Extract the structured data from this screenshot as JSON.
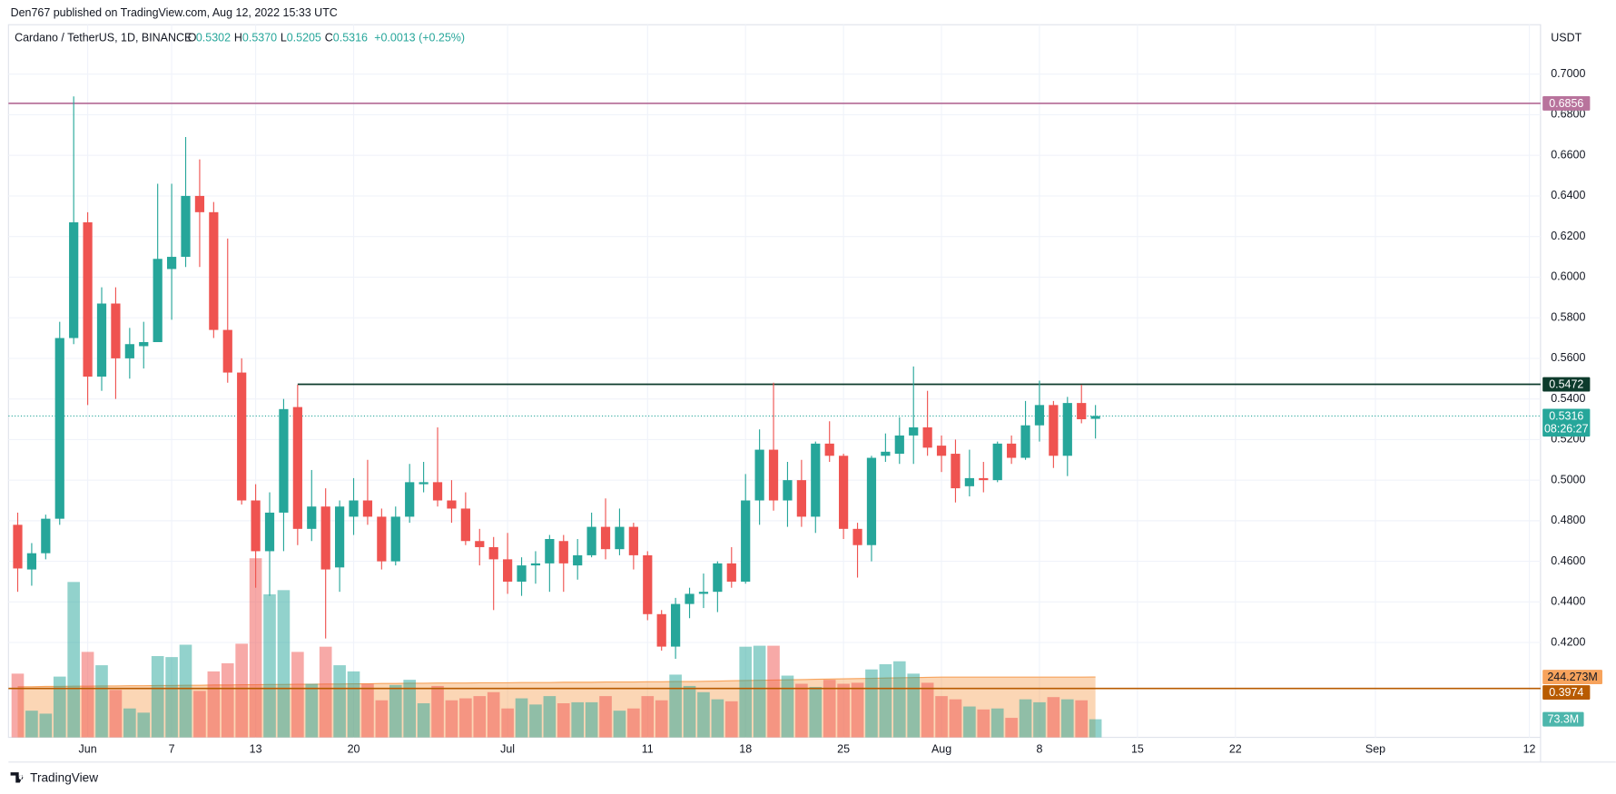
{
  "header": {
    "published": "Den767 published on TradingView.com, Aug 12, 2022 15:33 UTC",
    "symbol": "Cardano / TetherUS, 1D, BINANCE",
    "ohlc": [
      {
        "key": "O",
        "value": "0.5302"
      },
      {
        "key": "H",
        "value": "0.5370"
      },
      {
        "key": "L",
        "value": "0.5205"
      },
      {
        "key": "C",
        "value": "0.5316"
      }
    ],
    "change": "+0.0013 (+0.25%)"
  },
  "footer": {
    "brand": "TradingView"
  },
  "chart_data": {
    "type": "candlestick",
    "currency": "USDT",
    "up_color": "#26a69a",
    "down_color": "#ef5350",
    "grid": true,
    "xlim": [
      -0.66,
      108.8
    ],
    "xticks": [
      {
        "value": 5,
        "label": "Jun"
      },
      {
        "value": 11,
        "label": "7"
      },
      {
        "value": 17,
        "label": "13"
      },
      {
        "value": 24,
        "label": "20"
      },
      {
        "value": 35,
        "label": "Jul"
      },
      {
        "value": 45,
        "label": "11"
      },
      {
        "value": 52,
        "label": "18"
      },
      {
        "value": 59,
        "label": "25"
      },
      {
        "value": 66,
        "label": "Aug"
      },
      {
        "value": 73,
        "label": "8"
      },
      {
        "value": 80,
        "label": "15"
      },
      {
        "value": 87,
        "label": "22"
      },
      {
        "value": 97,
        "label": "Sep"
      },
      {
        "value": 108,
        "label": "12"
      }
    ],
    "ylim": [
      0.3733,
      0.7213
    ],
    "yticks": [
      {
        "value": 0.42,
        "label": "0.4200"
      },
      {
        "value": 0.44,
        "label": "0.4400"
      },
      {
        "value": 0.46,
        "label": "0.4600"
      },
      {
        "value": 0.48,
        "label": "0.4800"
      },
      {
        "value": 0.5,
        "label": "0.5000"
      },
      {
        "value": 0.52,
        "label": "0.5200"
      },
      {
        "value": 0.54,
        "label": "0.5400"
      },
      {
        "value": 0.56,
        "label": "0.5600"
      },
      {
        "value": 0.58,
        "label": "0.5800"
      },
      {
        "value": 0.6,
        "label": "0.6000"
      },
      {
        "value": 0.62,
        "label": "0.6200"
      },
      {
        "value": 0.64,
        "label": "0.6400"
      },
      {
        "value": 0.66,
        "label": "0.6600"
      },
      {
        "value": 0.68,
        "label": "0.6800"
      },
      {
        "value": 0.7,
        "label": "0.7000"
      }
    ],
    "candles": [
      {
        "o": 0.478,
        "h": 0.484,
        "l": 0.445,
        "c": 0.4565
      },
      {
        "o": 0.456,
        "h": 0.469,
        "l": 0.448,
        "c": 0.464
      },
      {
        "o": 0.464,
        "h": 0.483,
        "l": 0.461,
        "c": 0.481
      },
      {
        "o": 0.481,
        "h": 0.578,
        "l": 0.478,
        "c": 0.57
      },
      {
        "o": 0.57,
        "h": 0.689,
        "l": 0.567,
        "c": 0.627
      },
      {
        "o": 0.627,
        "h": 0.632,
        "l": 0.537,
        "c": 0.551
      },
      {
        "o": 0.551,
        "h": 0.595,
        "l": 0.544,
        "c": 0.587
      },
      {
        "o": 0.587,
        "h": 0.595,
        "l": 0.54,
        "c": 0.56
      },
      {
        "o": 0.56,
        "h": 0.575,
        "l": 0.55,
        "c": 0.567
      },
      {
        "o": 0.566,
        "h": 0.578,
        "l": 0.555,
        "c": 0.568
      },
      {
        "o": 0.568,
        "h": 0.646,
        "l": 0.568,
        "c": 0.609
      },
      {
        "o": 0.604,
        "h": 0.646,
        "l": 0.579,
        "c": 0.61
      },
      {
        "o": 0.61,
        "h": 0.669,
        "l": 0.605,
        "c": 0.64
      },
      {
        "o": 0.64,
        "h": 0.658,
        "l": 0.605,
        "c": 0.632
      },
      {
        "o": 0.632,
        "h": 0.637,
        "l": 0.57,
        "c": 0.574
      },
      {
        "o": 0.574,
        "h": 0.619,
        "l": 0.548,
        "c": 0.553
      },
      {
        "o": 0.553,
        "h": 0.56,
        "l": 0.488,
        "c": 0.49
      },
      {
        "o": 0.49,
        "h": 0.498,
        "l": 0.447,
        "c": 0.465
      },
      {
        "o": 0.465,
        "h": 0.494,
        "l": 0.443,
        "c": 0.484
      },
      {
        "o": 0.484,
        "h": 0.54,
        "l": 0.465,
        "c": 0.535
      },
      {
        "o": 0.536,
        "h": 0.547,
        "l": 0.468,
        "c": 0.476
      },
      {
        "o": 0.476,
        "h": 0.505,
        "l": 0.47,
        "c": 0.487
      },
      {
        "o": 0.487,
        "h": 0.496,
        "l": 0.422,
        "c": 0.456
      },
      {
        "o": 0.457,
        "h": 0.49,
        "l": 0.445,
        "c": 0.487
      },
      {
        "o": 0.482,
        "h": 0.501,
        "l": 0.473,
        "c": 0.49
      },
      {
        "o": 0.49,
        "h": 0.51,
        "l": 0.478,
        "c": 0.482
      },
      {
        "o": 0.482,
        "h": 0.486,
        "l": 0.456,
        "c": 0.46
      },
      {
        "o": 0.46,
        "h": 0.487,
        "l": 0.458,
        "c": 0.482
      },
      {
        "o": 0.482,
        "h": 0.508,
        "l": 0.479,
        "c": 0.499
      },
      {
        "o": 0.498,
        "h": 0.509,
        "l": 0.494,
        "c": 0.499
      },
      {
        "o": 0.499,
        "h": 0.526,
        "l": 0.487,
        "c": 0.49
      },
      {
        "o": 0.49,
        "h": 0.5,
        "l": 0.479,
        "c": 0.486
      },
      {
        "o": 0.486,
        "h": 0.494,
        "l": 0.468,
        "c": 0.47
      },
      {
        "o": 0.47,
        "h": 0.476,
        "l": 0.458,
        "c": 0.467
      },
      {
        "o": 0.467,
        "h": 0.472,
        "l": 0.436,
        "c": 0.461
      },
      {
        "o": 0.461,
        "h": 0.474,
        "l": 0.444,
        "c": 0.45
      },
      {
        "o": 0.45,
        "h": 0.462,
        "l": 0.443,
        "c": 0.458
      },
      {
        "o": 0.458,
        "h": 0.465,
        "l": 0.449,
        "c": 0.459
      },
      {
        "o": 0.459,
        "h": 0.473,
        "l": 0.445,
        "c": 0.471
      },
      {
        "o": 0.47,
        "h": 0.473,
        "l": 0.445,
        "c": 0.459
      },
      {
        "o": 0.458,
        "h": 0.471,
        "l": 0.451,
        "c": 0.463
      },
      {
        "o": 0.463,
        "h": 0.484,
        "l": 0.462,
        "c": 0.477
      },
      {
        "o": 0.477,
        "h": 0.491,
        "l": 0.461,
        "c": 0.466
      },
      {
        "o": 0.466,
        "h": 0.486,
        "l": 0.463,
        "c": 0.477
      },
      {
        "o": 0.477,
        "h": 0.479,
        "l": 0.456,
        "c": 0.463
      },
      {
        "o": 0.463,
        "h": 0.465,
        "l": 0.431,
        "c": 0.434
      },
      {
        "o": 0.434,
        "h": 0.436,
        "l": 0.416,
        "c": 0.418
      },
      {
        "o": 0.418,
        "h": 0.442,
        "l": 0.412,
        "c": 0.439
      },
      {
        "o": 0.439,
        "h": 0.447,
        "l": 0.432,
        "c": 0.444
      },
      {
        "o": 0.444,
        "h": 0.454,
        "l": 0.437,
        "c": 0.445
      },
      {
        "o": 0.445,
        "h": 0.46,
        "l": 0.435,
        "c": 0.459
      },
      {
        "o": 0.459,
        "h": 0.467,
        "l": 0.447,
        "c": 0.45
      },
      {
        "o": 0.45,
        "h": 0.503,
        "l": 0.449,
        "c": 0.49
      },
      {
        "o": 0.49,
        "h": 0.525,
        "l": 0.478,
        "c": 0.515
      },
      {
        "o": 0.515,
        "h": 0.548,
        "l": 0.485,
        "c": 0.49
      },
      {
        "o": 0.49,
        "h": 0.509,
        "l": 0.477,
        "c": 0.5
      },
      {
        "o": 0.5,
        "h": 0.51,
        "l": 0.477,
        "c": 0.482
      },
      {
        "o": 0.482,
        "h": 0.519,
        "l": 0.474,
        "c": 0.518
      },
      {
        "o": 0.518,
        "h": 0.529,
        "l": 0.509,
        "c": 0.512
      },
      {
        "o": 0.512,
        "h": 0.513,
        "l": 0.471,
        "c": 0.476
      },
      {
        "o": 0.476,
        "h": 0.479,
        "l": 0.452,
        "c": 0.468
      },
      {
        "o": 0.468,
        "h": 0.512,
        "l": 0.46,
        "c": 0.511
      },
      {
        "o": 0.512,
        "h": 0.523,
        "l": 0.509,
        "c": 0.514
      },
      {
        "o": 0.513,
        "h": 0.531,
        "l": 0.508,
        "c": 0.522
      },
      {
        "o": 0.522,
        "h": 0.556,
        "l": 0.508,
        "c": 0.526
      },
      {
        "o": 0.526,
        "h": 0.544,
        "l": 0.512,
        "c": 0.516
      },
      {
        "o": 0.517,
        "h": 0.522,
        "l": 0.504,
        "c": 0.512
      },
      {
        "o": 0.513,
        "h": 0.52,
        "l": 0.489,
        "c": 0.496
      },
      {
        "o": 0.497,
        "h": 0.515,
        "l": 0.492,
        "c": 0.501
      },
      {
        "o": 0.501,
        "h": 0.509,
        "l": 0.494,
        "c": 0.5
      },
      {
        "o": 0.5,
        "h": 0.519,
        "l": 0.499,
        "c": 0.518
      },
      {
        "o": 0.518,
        "h": 0.522,
        "l": 0.508,
        "c": 0.511
      },
      {
        "o": 0.511,
        "h": 0.539,
        "l": 0.51,
        "c": 0.527
      },
      {
        "o": 0.527,
        "h": 0.549,
        "l": 0.519,
        "c": 0.537
      },
      {
        "o": 0.537,
        "h": 0.539,
        "l": 0.506,
        "c": 0.512
      },
      {
        "o": 0.512,
        "h": 0.541,
        "l": 0.502,
        "c": 0.538
      },
      {
        "o": 0.538,
        "h": 0.547,
        "l": 0.528,
        "c": 0.53
      },
      {
        "o": 0.5302,
        "h": 0.537,
        "l": 0.5205,
        "c": 0.5316
      }
    ],
    "volume": {
      "vlim": [
        0,
        2860
      ],
      "up_color": "rgba(38,166,154,0.5)",
      "down_color": "rgba(239,83,80,0.5)",
      "ma_color": "#f7a35c",
      "values": [
        258,
        108,
        96,
        246,
        629,
        346,
        292,
        192,
        117,
        100,
        329,
        325,
        375,
        188,
        267,
        300,
        379,
        725,
        579,
        596,
        346,
        217,
        367,
        292,
        267,
        217,
        150,
        212,
        233,
        138,
        208,
        150,
        158,
        167,
        183,
        117,
        158,
        133,
        167,
        138,
        142,
        142,
        167,
        108,
        117,
        167,
        150,
        254,
        208,
        183,
        154,
        146,
        367,
        371,
        371,
        250,
        217,
        204,
        233,
        217,
        221,
        275,
        296,
        308,
        258,
        221,
        167,
        154,
        125,
        113,
        117,
        79,
        154,
        142,
        163,
        154,
        150,
        73.3
      ],
      "last_label": "73.3M",
      "ma": [
        205,
        205,
        206,
        206,
        207,
        207,
        208,
        208,
        209,
        209,
        210,
        210,
        211,
        211,
        212,
        212,
        213,
        213,
        214,
        214,
        215,
        215,
        216,
        216,
        217,
        217,
        218,
        218,
        219,
        219,
        220,
        220,
        220,
        221,
        221,
        221,
        222,
        222,
        222,
        223,
        223,
        223,
        224,
        224,
        224,
        225,
        225,
        226,
        226,
        227,
        228,
        229,
        230,
        231,
        232,
        233,
        234,
        235,
        236,
        237,
        238,
        239,
        240,
        241,
        242,
        243,
        244,
        244,
        244,
        244,
        244,
        244,
        244,
        244,
        244,
        244,
        244,
        244.273
      ],
      "ma_label": "244.273M"
    },
    "levels": [
      {
        "value": 0.6856,
        "color": "#b8739c"
      },
      {
        "value": 0.5472,
        "color": "#0d3b2c",
        "x0": 20
      },
      {
        "value": 0.3974,
        "color": "#b85b00"
      }
    ],
    "last": {
      "value": 0.5316,
      "countdown": "08:26:27"
    }
  }
}
